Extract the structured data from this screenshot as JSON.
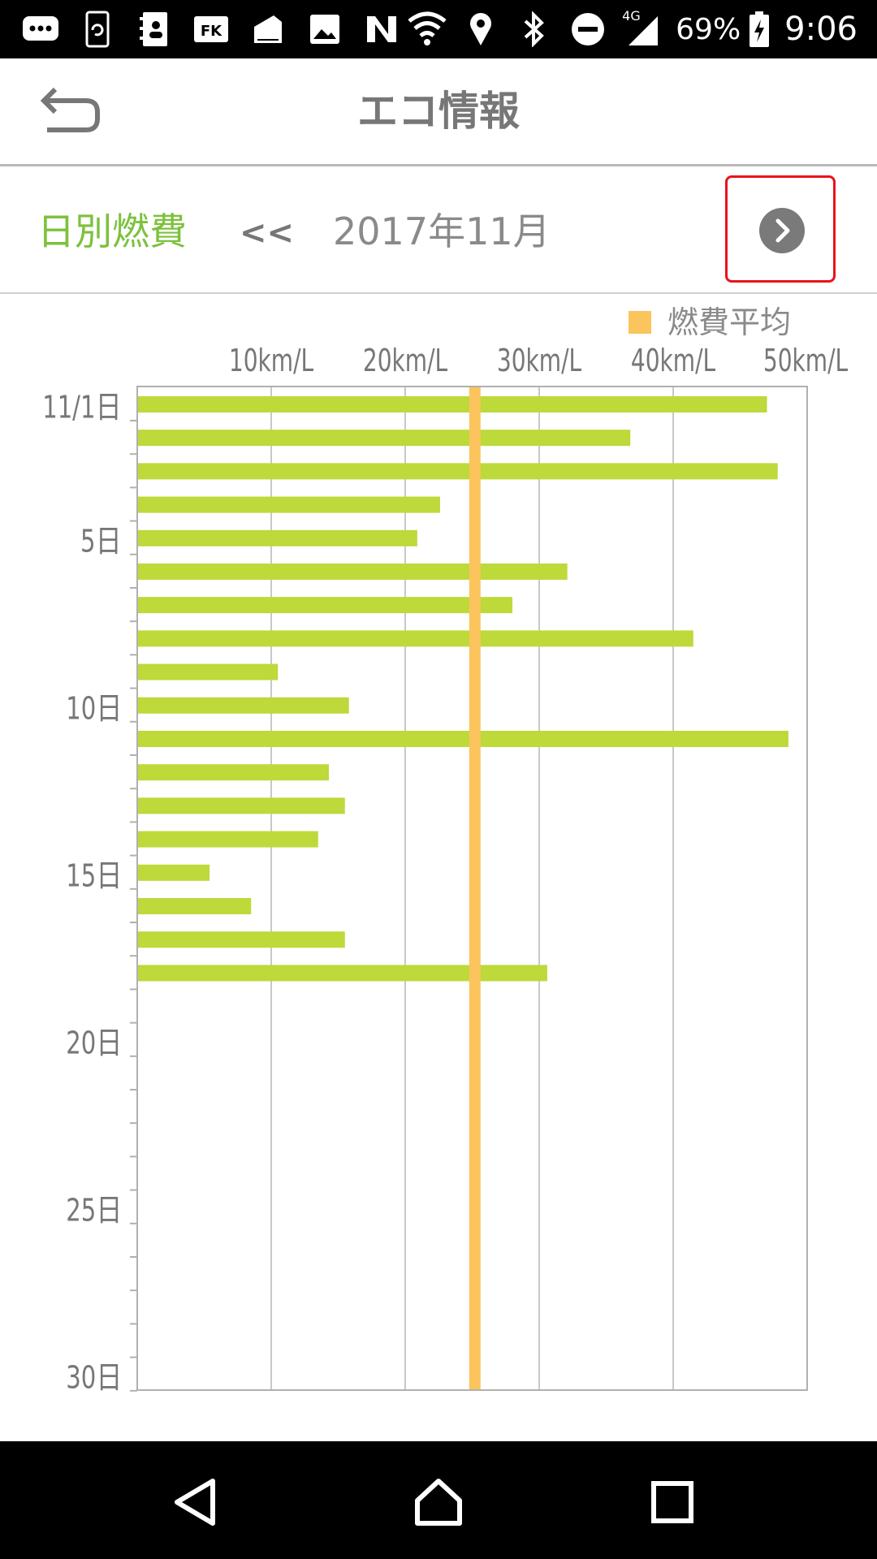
{
  "status_bar": {
    "battery": "69%",
    "time": "9:06",
    "network": "4G",
    "icons_left": [
      "messages-icon",
      "sync-icon",
      "contacts-icon",
      "contacts-card-icon",
      "fk-app-icon",
      "sdcard-icon",
      "gallery-icon",
      "nfc-icon"
    ],
    "icons_right": [
      "wifi-icon",
      "location-icon",
      "bluetooth-icon",
      "do-not-disturb-icon",
      "signal-icon",
      "battery-charging-icon"
    ]
  },
  "header": {
    "title": "エコ情報",
    "back_icon": "back-arrow-icon"
  },
  "sub_header": {
    "mode_label": "日別燃費",
    "prev_label": "<<",
    "month_label": "2017年11月",
    "next_icon": "chevron-right-icon"
  },
  "colors": {
    "accent_green": "#7cc13d",
    "bar_green": "#bdd93a",
    "average_orange": "#fbc45c",
    "highlight_red": "#e8141b"
  },
  "chart_data": {
    "type": "bar",
    "orientation": "horizontal",
    "legend": [
      "燃費平均"
    ],
    "legend_placement": "top-right",
    "x_ticks": [
      "10km/L",
      "20km/L",
      "30km/L",
      "40km/L",
      "50km/L"
    ],
    "xlim": [
      0,
      50
    ],
    "average": 25.2,
    "grid": true,
    "y_tick_labels": [
      {
        "day": 1,
        "label": "11/1日"
      },
      {
        "day": 5,
        "label": "5日"
      },
      {
        "day": 10,
        "label": "10日"
      },
      {
        "day": 15,
        "label": "15日"
      },
      {
        "day": 20,
        "label": "20日"
      },
      {
        "day": 25,
        "label": "25日"
      },
      {
        "day": 30,
        "label": "30日"
      }
    ],
    "days": 30,
    "values": [
      47.0,
      36.8,
      47.8,
      22.6,
      20.9,
      32.1,
      28.0,
      41.5,
      10.5,
      15.8,
      48.6,
      14.3,
      15.5,
      13.5,
      5.4,
      8.5,
      15.5,
      30.6
    ]
  }
}
